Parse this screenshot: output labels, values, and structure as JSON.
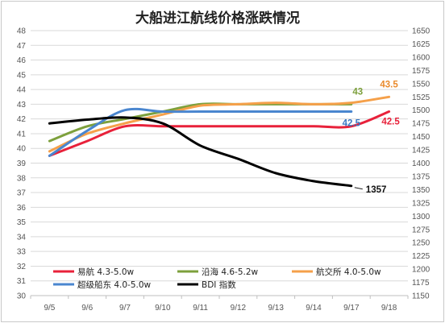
{
  "chart_data": {
    "type": "line",
    "title": "大船进江航线价格涨跌情况",
    "categories": [
      "9/5",
      "9/6",
      "9/7",
      "9/10",
      "9/11",
      "9/12",
      "9/13",
      "9/14",
      "9/17",
      "9/18"
    ],
    "ylim_left": [
      30,
      48
    ],
    "yticks_left": [
      30,
      31,
      32,
      33,
      34,
      35,
      36,
      37,
      38,
      39,
      40,
      41,
      42,
      43,
      44,
      45,
      46,
      47,
      48
    ],
    "ylim_right": [
      1150,
      1650
    ],
    "yticks_right": [
      1150,
      1175,
      1200,
      1225,
      1250,
      1275,
      1300,
      1325,
      1350,
      1375,
      1400,
      1425,
      1450,
      1475,
      1500,
      1525,
      1550,
      1575,
      1600,
      1625,
      1650
    ],
    "grid": "horizontal",
    "legend_position": "bottom-inside",
    "series": [
      {
        "name": "易航 4.3-5.0w",
        "color": "#e8213a",
        "axis": "left",
        "values": [
          39.5,
          40.5,
          41.5,
          41.5,
          41.5,
          41.5,
          41.5,
          41.5,
          41.5,
          42.5
        ],
        "end_label": "42.5",
        "label_color": "#e8213a"
      },
      {
        "name": "沿海 4.6-5.2w",
        "color": "#7da03c",
        "axis": "left",
        "values": [
          40.5,
          41.5,
          42.0,
          42.5,
          43.0,
          43.0,
          43.0,
          43.0,
          43.0,
          null
        ],
        "end_label": "43",
        "label_color": "#7da03c"
      },
      {
        "name": "航交所 4.0-5.0w",
        "color": "#f5a04a",
        "axis": "left",
        "values": [
          39.8,
          41.0,
          41.7,
          42.3,
          42.9,
          43.0,
          43.1,
          43.0,
          43.1,
          43.5
        ],
        "end_label": "43.5",
        "label_color": "#e98a2c"
      },
      {
        "name": "超级船东 4.0-5.0w",
        "color": "#4a86cf",
        "axis": "left",
        "values": [
          39.5,
          41.2,
          42.6,
          42.5,
          42.5,
          42.5,
          42.5,
          42.5,
          42.5,
          null
        ],
        "end_label": "42.5",
        "label_color": "#3a78c4"
      },
      {
        "name": "BDI 指数",
        "color": "#000000",
        "axis": "right",
        "values": [
          1475,
          1482,
          1486,
          1475,
          1433,
          1408,
          1381,
          1366,
          1357,
          null
        ],
        "end_label": "1357",
        "label_color": "#111111"
      }
    ]
  }
}
